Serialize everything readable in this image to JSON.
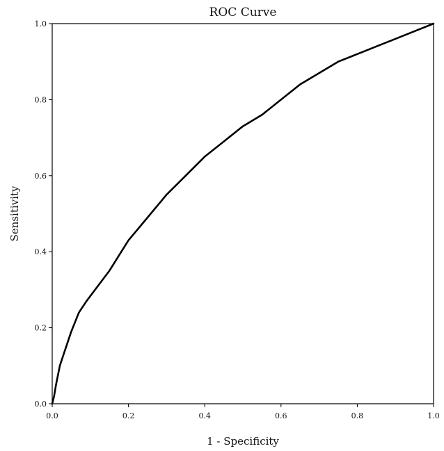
{
  "chart_data": {
    "type": "line",
    "title": "ROC Curve",
    "xlabel": "1 - Specificity",
    "ylabel": "Sensitivity",
    "xlim": [
      0.0,
      1.0
    ],
    "ylim": [
      0.0,
      1.0
    ],
    "x_ticks": [
      "0.0",
      "0.2",
      "0.4",
      "0.6",
      "0.8",
      "1.0"
    ],
    "y_ticks": [
      "0.0",
      "0.2",
      "0.4",
      "0.6",
      "0.8",
      "1.0"
    ],
    "grid": false,
    "legend": "none",
    "line_color": "#000000",
    "series": [
      {
        "x": [
          0.0,
          0.005,
          0.01,
          0.02,
          0.03,
          0.05,
          0.07,
          0.09,
          0.12,
          0.15,
          0.2,
          0.25,
          0.3,
          0.35,
          0.4,
          0.45,
          0.5,
          0.55,
          0.6,
          0.65,
          0.7,
          0.75,
          0.8,
          0.85,
          0.9,
          0.95,
          1.0
        ],
        "y": [
          0.0,
          0.02,
          0.05,
          0.1,
          0.13,
          0.19,
          0.24,
          0.27,
          0.31,
          0.35,
          0.43,
          0.49,
          0.55,
          0.6,
          0.65,
          0.69,
          0.73,
          0.76,
          0.8,
          0.84,
          0.87,
          0.9,
          0.92,
          0.94,
          0.96,
          0.98,
          1.0
        ]
      }
    ]
  }
}
